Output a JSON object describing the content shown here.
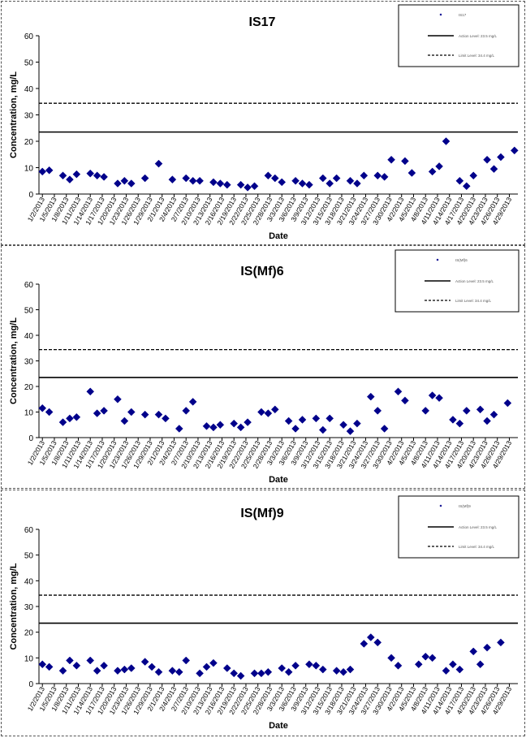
{
  "chart_data": [
    {
      "type": "scatter",
      "title": "IS17",
      "xlabel": "Date",
      "ylabel": "Concentration, mg/L",
      "ylim": [
        0,
        60
      ],
      "yticks": [
        0,
        10,
        20,
        30,
        40,
        50,
        60
      ],
      "xtick_labels": [
        "1/2/2013",
        "1/5/2013",
        "1/8/2013",
        "1/11/2013",
        "1/14/2013",
        "1/17/2013",
        "1/20/2013",
        "1/23/2013",
        "1/26/2013",
        "1/29/2013",
        "2/1/2013",
        "2/4/2013",
        "2/7/2013",
        "2/10/2013",
        "2/13/2013",
        "2/16/2013",
        "2/19/2013",
        "2/22/2013",
        "2/25/2013",
        "2/28/2013",
        "3/3/2013",
        "3/6/2013",
        "3/9/2013",
        "3/12/2013",
        "3/15/2013",
        "3/18/2013",
        "3/21/2013",
        "3/24/2013",
        "3/27/2013",
        "3/30/2013",
        "4/2/2013",
        "4/5/2013",
        "4/8/2013",
        "4/11/2013",
        "4/14/2013",
        "4/17/2013",
        "4/20/2013",
        "4/23/2013",
        "4/26/2013",
        "4/29/2013"
      ],
      "legend": {
        "position": "top-right",
        "entries": [
          "IS17",
          "Action Level: 23.5 mg/L",
          "Limit Level: 34.4 mg/L"
        ]
      },
      "action_level": 23.5,
      "limit_level": 34.4,
      "series": [
        {
          "name": "IS17",
          "color": "#00008b",
          "marker": "diamond",
          "values": [
            [
              0,
              8.5
            ],
            [
              1,
              9
            ],
            [
              3,
              7
            ],
            [
              4,
              5.5
            ],
            [
              5,
              7.5
            ],
            [
              7,
              7.8
            ],
            [
              8,
              7
            ],
            [
              9,
              6.5
            ],
            [
              11,
              4
            ],
            [
              12,
              5
            ],
            [
              13,
              4
            ],
            [
              15,
              6
            ],
            [
              17,
              11.5
            ],
            [
              19,
              5.5
            ],
            [
              21,
              6
            ],
            [
              22,
              5
            ],
            [
              23,
              5
            ],
            [
              25,
              4.5
            ],
            [
              26,
              4
            ],
            [
              27,
              3.5
            ],
            [
              29,
              3.5
            ],
            [
              30,
              2.5
            ],
            [
              31,
              3
            ],
            [
              33,
              7
            ],
            [
              34,
              6
            ],
            [
              35,
              4.5
            ],
            [
              37,
              5
            ],
            [
              38,
              4
            ],
            [
              39,
              3.5
            ],
            [
              41,
              6
            ],
            [
              42,
              4
            ],
            [
              43,
              6
            ],
            [
              45,
              5
            ],
            [
              46,
              4
            ],
            [
              47,
              7
            ],
            [
              49,
              7
            ],
            [
              50,
              6.5
            ],
            [
              51,
              13
            ],
            [
              53,
              12.5
            ],
            [
              54,
              8
            ],
            [
              57,
              8.5
            ],
            [
              58,
              10.5
            ],
            [
              59,
              20
            ],
            [
              61,
              5
            ],
            [
              62,
              3
            ],
            [
              63,
              7
            ],
            [
              65,
              13
            ],
            [
              66,
              9.5
            ],
            [
              67,
              14
            ],
            [
              69,
              16.5
            ]
          ]
        }
      ]
    },
    {
      "type": "scatter",
      "title": "IS(Mf)6",
      "xlabel": "Date",
      "ylabel": "Concentration, mg/L",
      "ylim": [
        0,
        60
      ],
      "yticks": [
        0,
        10,
        20,
        30,
        40,
        50,
        60
      ],
      "xtick_labels": [
        "1/2/2013",
        "1/5/2013",
        "1/8/2013",
        "1/11/2013",
        "1/14/2013",
        "1/17/2013",
        "1/20/2013",
        "1/23/2013",
        "1/26/2013",
        "1/29/2013",
        "2/1/2013",
        "2/4/2013",
        "2/7/2013",
        "2/10/2013",
        "2/13/2013",
        "2/16/2013",
        "2/19/2013",
        "2/22/2013",
        "2/25/2013",
        "2/28/2013",
        "3/3/2013",
        "3/6/2013",
        "3/9/2013",
        "3/12/2013",
        "3/15/2013",
        "3/18/2013",
        "3/21/2013",
        "3/24/2013",
        "3/27/2013",
        "3/30/2013",
        "4/2/2013",
        "4/5/2013",
        "4/8/2013",
        "4/11/2013",
        "4/14/2013",
        "4/17/2013",
        "4/20/2013",
        "4/23/2013",
        "4/26/2013",
        "4/29/2013"
      ],
      "legend": {
        "position": "top-right",
        "entries": [
          "IS(Mf)6",
          "Action Level: 23.5 mg/L",
          "Limit Level: 34.4 mg/L"
        ]
      },
      "action_level": 23.5,
      "limit_level": 34.4,
      "series": [
        {
          "name": "IS(Mf)6",
          "color": "#00008b",
          "marker": "diamond",
          "values": [
            [
              0,
              11.5
            ],
            [
              1,
              10
            ],
            [
              3,
              6
            ],
            [
              4,
              7.5
            ],
            [
              5,
              8
            ],
            [
              7,
              18
            ],
            [
              8,
              9.5
            ],
            [
              9,
              10.5
            ],
            [
              11,
              15
            ],
            [
              12,
              6.5
            ],
            [
              13,
              10
            ],
            [
              15,
              9
            ],
            [
              17,
              9
            ],
            [
              18,
              7.5
            ],
            [
              20,
              3.5
            ],
            [
              21,
              10.5
            ],
            [
              22,
              14
            ],
            [
              24,
              4.5
            ],
            [
              25,
              4
            ],
            [
              26,
              5
            ],
            [
              28,
              5.5
            ],
            [
              29,
              4
            ],
            [
              30,
              6
            ],
            [
              32,
              10
            ],
            [
              33,
              9.5
            ],
            [
              34,
              11
            ],
            [
              36,
              6.5
            ],
            [
              37,
              3.5
            ],
            [
              38,
              7
            ],
            [
              40,
              7.5
            ],
            [
              41,
              3
            ],
            [
              42,
              7.5
            ],
            [
              44,
              5
            ],
            [
              45,
              2.5
            ],
            [
              46,
              5.5
            ],
            [
              48,
              16
            ],
            [
              49,
              10.5
            ],
            [
              50,
              3.5
            ],
            [
              52,
              18
            ],
            [
              53,
              14.5
            ],
            [
              56,
              10.5
            ],
            [
              57,
              16.5
            ],
            [
              58,
              15.5
            ],
            [
              60,
              7
            ],
            [
              61,
              5.5
            ],
            [
              62,
              10.5
            ],
            [
              64,
              11
            ],
            [
              65,
              6.5
            ],
            [
              66,
              9
            ],
            [
              68,
              13.5
            ]
          ]
        }
      ]
    },
    {
      "type": "scatter",
      "title": "IS(Mf)9",
      "xlabel": "Date",
      "ylabel": "Concentration, mg/L",
      "ylim": [
        0,
        60
      ],
      "yticks": [
        0,
        10,
        20,
        30,
        40,
        50,
        60
      ],
      "xtick_labels": [
        "1/2/2013",
        "1/5/2013",
        "1/8/2013",
        "1/11/2013",
        "1/14/2013",
        "1/17/2013",
        "1/20/2013",
        "1/23/2013",
        "1/26/2013",
        "1/29/2013",
        "2/1/2013",
        "2/4/2013",
        "2/7/2013",
        "2/10/2013",
        "2/13/2013",
        "2/16/2013",
        "2/19/2013",
        "2/22/2013",
        "2/25/2013",
        "2/28/2013",
        "3/3/2013",
        "3/6/2013",
        "3/9/2013",
        "3/12/2013",
        "3/15/2013",
        "3/18/2013",
        "3/21/2013",
        "3/24/2013",
        "3/27/2013",
        "3/30/2013",
        "4/2/2013",
        "4/5/2013",
        "4/8/2013",
        "4/11/2013",
        "4/14/2013",
        "4/17/2013",
        "4/20/2013",
        "4/23/2013",
        "4/26/2013",
        "4/29/2013"
      ],
      "legend": {
        "position": "top-right",
        "entries": [
          "IS(Mf)9",
          "Action Level: 23.5 mg/L",
          "Limit Level: 34.4 mg/L"
        ]
      },
      "action_level": 23.5,
      "limit_level": 34.4,
      "series": [
        {
          "name": "IS(Mf)9",
          "color": "#00008b",
          "marker": "diamond",
          "values": [
            [
              0,
              7.5
            ],
            [
              1,
              6.5
            ],
            [
              3,
              5
            ],
            [
              4,
              9
            ],
            [
              5,
              7
            ],
            [
              7,
              9
            ],
            [
              8,
              5
            ],
            [
              9,
              7
            ],
            [
              11,
              5
            ],
            [
              12,
              5.5
            ],
            [
              13,
              6
            ],
            [
              15,
              8.5
            ],
            [
              16,
              6.5
            ],
            [
              17,
              4.5
            ],
            [
              19,
              5
            ],
            [
              20,
              4.5
            ],
            [
              21,
              9
            ],
            [
              23,
              4
            ],
            [
              24,
              6.5
            ],
            [
              25,
              8
            ],
            [
              27,
              6
            ],
            [
              28,
              4
            ],
            [
              29,
              3
            ],
            [
              31,
              4
            ],
            [
              32,
              4
            ],
            [
              33,
              4.5
            ],
            [
              35,
              6
            ],
            [
              36,
              4.5
            ],
            [
              37,
              7
            ],
            [
              39,
              7.5
            ],
            [
              40,
              7
            ],
            [
              41,
              5.5
            ],
            [
              43,
              5
            ],
            [
              44,
              4.5
            ],
            [
              45,
              5.5
            ],
            [
              47,
              15.5
            ],
            [
              48,
              18
            ],
            [
              49,
              16
            ],
            [
              51,
              10
            ],
            [
              52,
              7
            ],
            [
              55,
              7.5
            ],
            [
              56,
              10.5
            ],
            [
              57,
              10
            ],
            [
              59,
              5
            ],
            [
              60,
              7.5
            ],
            [
              61,
              5.5
            ],
            [
              63,
              12.5
            ],
            [
              64,
              7.5
            ],
            [
              65,
              14
            ],
            [
              67,
              16
            ]
          ]
        }
      ]
    }
  ]
}
